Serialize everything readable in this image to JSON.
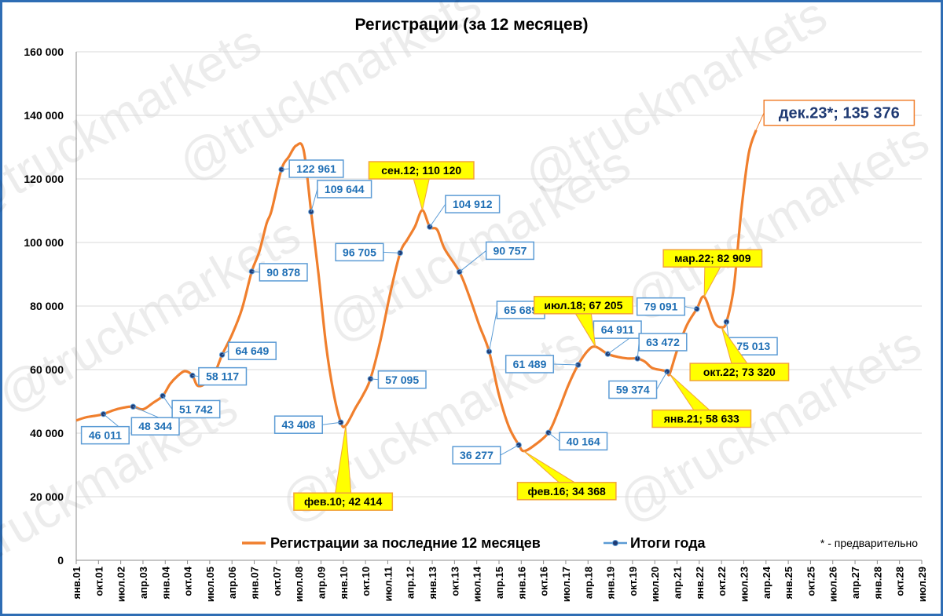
{
  "chart_data": {
    "type": "line",
    "title": "Регистрации (за 12 месяцев)",
    "watermark": "@truckmarkets",
    "ylim": [
      0,
      160000
    ],
    "yticks": [
      {
        "v": 0,
        "label": "0"
      },
      {
        "v": 20000,
        "label": "20 000"
      },
      {
        "v": 40000,
        "label": "40 000"
      },
      {
        "v": 60000,
        "label": "60 000"
      },
      {
        "v": 80000,
        "label": "80 000"
      },
      {
        "v": 100000,
        "label": "100 000"
      },
      {
        "v": 120000,
        "label": "120 000"
      },
      {
        "v": 140000,
        "label": "140 000"
      },
      {
        "v": 160000,
        "label": "160 000"
      }
    ],
    "xrange": [
      "2001-01",
      "2029-07"
    ],
    "xticks": [
      "янв.01",
      "окт.01",
      "июл.02",
      "апр.03",
      "янв.04",
      "окт.04",
      "июл.05",
      "апр.06",
      "янв.07",
      "окт.07",
      "июл.08",
      "апр.09",
      "янв.10",
      "окт.10",
      "июл.11",
      "апр.12",
      "янв.13",
      "окт.13",
      "июл.14",
      "апр.15",
      "янв.16",
      "окт.16",
      "июл.17",
      "апр.18",
      "янв.19",
      "окт.19",
      "июл.20",
      "апр.21",
      "янв.22",
      "окт.22",
      "июл.23",
      "апр.24",
      "янв.25",
      "окт.25",
      "июл.26",
      "апр.27",
      "янв.28",
      "окт.28",
      "июл.29"
    ],
    "grid": true,
    "legend": [
      {
        "name": "Регистрации за последние 12 месяцев",
        "color": "#f07f2d"
      },
      {
        "name": "Итоги года",
        "color": "#5b9bd5"
      }
    ],
    "note": "* - предварительно",
    "series": [
      {
        "name": "Регистрации за последние 12 месяцев",
        "color": "#f07f2d",
        "points": [
          [
            "2001-01",
            44000
          ],
          [
            "2001-05",
            45000
          ],
          [
            "2001-09",
            45500
          ],
          [
            "2001-12",
            46011
          ],
          [
            "2002-04",
            47200
          ],
          [
            "2002-08",
            48000
          ],
          [
            "2002-12",
            48344
          ],
          [
            "2003-04",
            47500
          ],
          [
            "2003-08",
            49500
          ],
          [
            "2003-12",
            51742
          ],
          [
            "2004-03",
            55500
          ],
          [
            "2004-06",
            58000
          ],
          [
            "2004-09",
            59500
          ],
          [
            "2004-12",
            58117
          ],
          [
            "2005-02",
            55000
          ],
          [
            "2005-05",
            55500
          ],
          [
            "2005-09",
            59000
          ],
          [
            "2005-12",
            64649
          ],
          [
            "2006-04",
            71000
          ],
          [
            "2006-08",
            79000
          ],
          [
            "2006-12",
            90878
          ],
          [
            "2007-03",
            97000
          ],
          [
            "2007-06",
            106000
          ],
          [
            "2007-08",
            110000
          ],
          [
            "2007-12",
            122961
          ],
          [
            "2008-03",
            127000
          ],
          [
            "2008-06",
            130500
          ],
          [
            "2008-09",
            129000
          ],
          [
            "2008-12",
            109644
          ],
          [
            "2009-03",
            90000
          ],
          [
            "2009-06",
            68000
          ],
          [
            "2009-09",
            53000
          ],
          [
            "2009-12",
            43408
          ],
          [
            "2010-02",
            42414
          ],
          [
            "2010-06",
            48000
          ],
          [
            "2010-09",
            52000
          ],
          [
            "2010-12",
            57095
          ],
          [
            "2011-04",
            69000
          ],
          [
            "2011-08",
            84000
          ],
          [
            "2011-12",
            96705
          ],
          [
            "2012-03",
            101000
          ],
          [
            "2012-06",
            105000
          ],
          [
            "2012-09",
            110120
          ],
          [
            "2012-12",
            104912
          ],
          [
            "2013-03",
            104000
          ],
          [
            "2013-06",
            98000
          ],
          [
            "2013-12",
            90757
          ],
          [
            "2014-04",
            83000
          ],
          [
            "2014-08",
            74000
          ],
          [
            "2014-12",
            65689
          ],
          [
            "2015-04",
            52000
          ],
          [
            "2015-08",
            42000
          ],
          [
            "2015-12",
            36277
          ],
          [
            "2016-02",
            34368
          ],
          [
            "2016-06",
            36000
          ],
          [
            "2016-12",
            40164
          ],
          [
            "2017-04",
            47000
          ],
          [
            "2017-08",
            55000
          ],
          [
            "2017-12",
            61489
          ],
          [
            "2018-04",
            66000
          ],
          [
            "2018-07",
            67205
          ],
          [
            "2018-12",
            64911
          ],
          [
            "2019-04",
            64000
          ],
          [
            "2019-08",
            63500
          ],
          [
            "2019-12",
            63472
          ],
          [
            "2020-03",
            62500
          ],
          [
            "2020-06",
            60500
          ],
          [
            "2020-10",
            59800
          ],
          [
            "2020-12",
            59374
          ],
          [
            "2021-01",
            58633
          ],
          [
            "2021-04",
            66000
          ],
          [
            "2021-08",
            74000
          ],
          [
            "2021-12",
            79091
          ],
          [
            "2022-03",
            82909
          ],
          [
            "2022-07",
            75000
          ],
          [
            "2022-10",
            73320
          ],
          [
            "2022-12",
            75013
          ],
          [
            "2023-03",
            86000
          ],
          [
            "2023-06",
            110000
          ],
          [
            "2023-09",
            128000
          ],
          [
            "2023-12",
            135376
          ]
        ]
      },
      {
        "name": "Итоги года",
        "color": "#5b9bd5",
        "points": [
          [
            "2001-12",
            46011
          ],
          [
            "2002-12",
            48344
          ],
          [
            "2003-12",
            51742
          ],
          [
            "2004-12",
            58117
          ],
          [
            "2005-12",
            64649
          ],
          [
            "2006-12",
            90878
          ],
          [
            "2007-12",
            122961
          ],
          [
            "2008-12",
            109644
          ],
          [
            "2009-12",
            43408
          ],
          [
            "2010-12",
            57095
          ],
          [
            "2011-12",
            96705
          ],
          [
            "2012-12",
            104912
          ],
          [
            "2013-12",
            90757
          ],
          [
            "2014-12",
            65689
          ],
          [
            "2015-12",
            36277
          ],
          [
            "2016-12",
            40164
          ],
          [
            "2017-12",
            61489
          ],
          [
            "2018-12",
            64911
          ],
          [
            "2019-12",
            63472
          ],
          [
            "2020-12",
            59374
          ],
          [
            "2021-12",
            79091
          ],
          [
            "2022-12",
            75013
          ]
        ]
      }
    ],
    "annotations": [
      {
        "text": "46 011",
        "style": "blue",
        "at": [
          "2001-12",
          46011
        ]
      },
      {
        "text": "48 344",
        "style": "blue",
        "at": [
          "2002-12",
          48344
        ]
      },
      {
        "text": "51 742",
        "style": "blue",
        "at": [
          "2003-12",
          51742
        ]
      },
      {
        "text": "58 117",
        "style": "blue",
        "at": [
          "2004-12",
          58117
        ]
      },
      {
        "text": "64 649",
        "style": "blue",
        "at": [
          "2005-12",
          64649
        ]
      },
      {
        "text": "90 878",
        "style": "blue",
        "at": [
          "2006-12",
          90878
        ]
      },
      {
        "text": "122 961",
        "style": "blue",
        "at": [
          "2007-12",
          122961
        ]
      },
      {
        "text": "109 644",
        "style": "blue",
        "at": [
          "2008-12",
          109644
        ]
      },
      {
        "text": "43 408",
        "style": "blue",
        "at": [
          "2009-12",
          43408
        ]
      },
      {
        "text": "57 095",
        "style": "blue",
        "at": [
          "2010-12",
          57095
        ]
      },
      {
        "text": "96 705",
        "style": "blue",
        "at": [
          "2011-12",
          96705
        ]
      },
      {
        "text": "104 912",
        "style": "blue",
        "at": [
          "2012-12",
          104912
        ]
      },
      {
        "text": "90 757",
        "style": "blue",
        "at": [
          "2013-12",
          90757
        ]
      },
      {
        "text": "65 689",
        "style": "blue",
        "at": [
          "2014-12",
          65689
        ]
      },
      {
        "text": "36 277",
        "style": "blue",
        "at": [
          "2015-12",
          36277
        ]
      },
      {
        "text": "40 164",
        "style": "blue",
        "at": [
          "2016-12",
          40164
        ]
      },
      {
        "text": "61 489",
        "style": "blue",
        "at": [
          "2017-12",
          61489
        ]
      },
      {
        "text": "64 911",
        "style": "blue",
        "at": [
          "2018-12",
          64911
        ]
      },
      {
        "text": "63 472",
        "style": "blue",
        "at": [
          "2019-12",
          63472
        ]
      },
      {
        "text": "59 374",
        "style": "blue",
        "at": [
          "2020-12",
          59374
        ]
      },
      {
        "text": "79 091",
        "style": "blue",
        "at": [
          "2021-12",
          79091
        ]
      },
      {
        "text": "75 013",
        "style": "blue",
        "at": [
          "2022-12",
          75013
        ]
      },
      {
        "text": "фев.10; 42 414",
        "style": "callout",
        "at": [
          "2010-02",
          42414
        ]
      },
      {
        "text": "сен.12; 110 120",
        "style": "callout",
        "at": [
          "2012-09",
          110120
        ]
      },
      {
        "text": "фев.16; 34 368",
        "style": "callout",
        "at": [
          "2016-02",
          34368
        ]
      },
      {
        "text": "июл.18; 67 205",
        "style": "callout",
        "at": [
          "2018-07",
          67205
        ]
      },
      {
        "text": "янв.21; 58 633",
        "style": "callout",
        "at": [
          "2021-01",
          58633
        ]
      },
      {
        "text": "мар.22; 82 909",
        "style": "callout",
        "at": [
          "2022-03",
          82909
        ]
      },
      {
        "text": "окт.22; 73 320",
        "style": "callout",
        "at": [
          "2022-10",
          73320
        ]
      },
      {
        "text": "дек.23*; 135 376",
        "style": "big",
        "at": [
          "2023-12",
          135376
        ]
      }
    ]
  }
}
